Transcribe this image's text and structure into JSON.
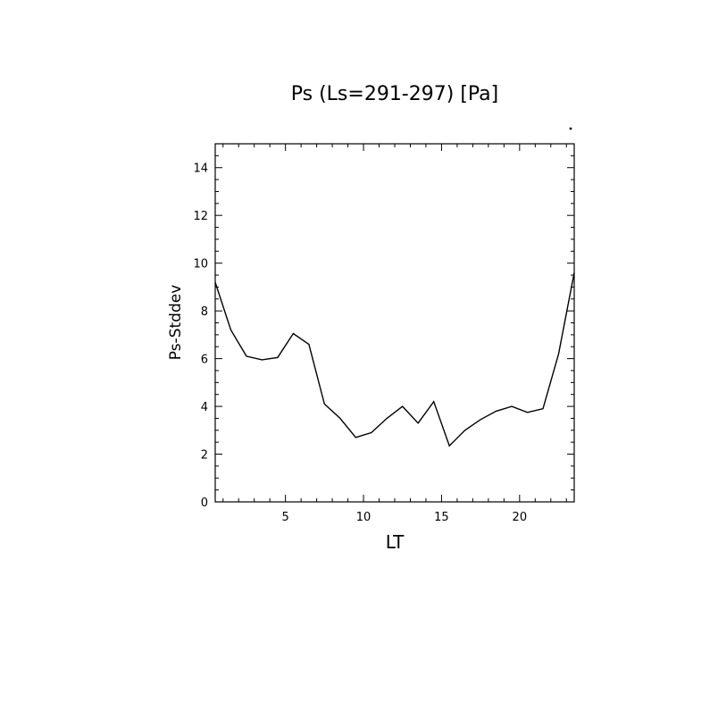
{
  "chart_data": {
    "type": "line",
    "title": "Ps (Ls=291-297) [Pa]",
    "xlabel": "LT",
    "ylabel": "Ps-Stddev",
    "xlim": [
      0.5,
      23.5
    ],
    "ylim": [
      0,
      15
    ],
    "xticks": [
      5,
      10,
      15,
      20
    ],
    "yticks": [
      0,
      2,
      4,
      6,
      8,
      10,
      12,
      14
    ],
    "grid": false,
    "series": [
      {
        "x": [
          0.5,
          1.5,
          2.5,
          3.5,
          4.5,
          5.5,
          6.5,
          7.5,
          8.5,
          9.5,
          10.5,
          11.5,
          12.5,
          13.5,
          14.5,
          15.5,
          16.5,
          17.5,
          18.5,
          19.5,
          20.5,
          21.5,
          22.5,
          23.5
        ],
        "y": [
          9.2,
          7.2,
          6.1,
          5.95,
          6.05,
          7.05,
          6.6,
          4.1,
          3.5,
          2.7,
          2.9,
          3.5,
          4.0,
          3.3,
          4.2,
          2.35,
          3.0,
          3.45,
          3.8,
          4.0,
          3.75,
          3.9,
          6.2,
          9.6
        ]
      }
    ]
  }
}
